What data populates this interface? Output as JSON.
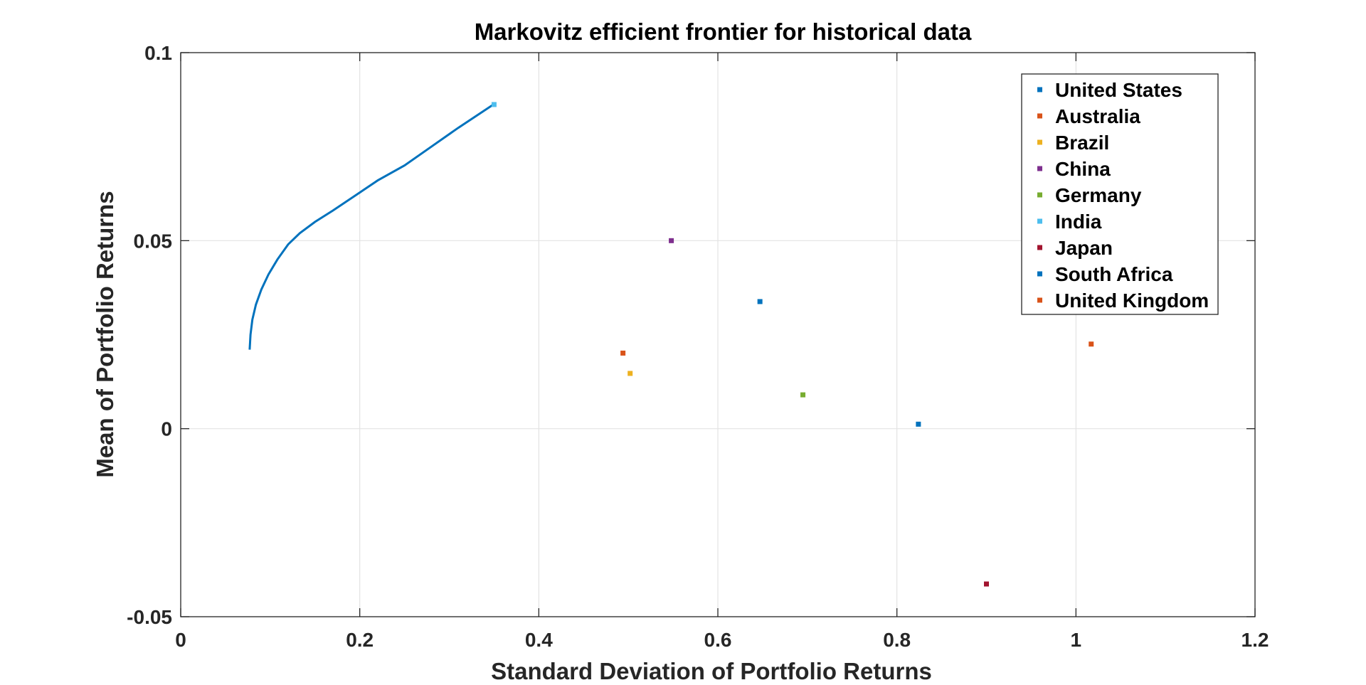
{
  "chart_data": {
    "type": "scatter",
    "title": "Markovitz efficient frontier for historical data",
    "xlabel": "Standard Deviation of Portfolio Returns",
    "ylabel": "Mean of Portfolio Returns",
    "xlim": [
      0,
      1.2
    ],
    "ylim": [
      -0.05,
      0.1
    ],
    "xticks": [
      0,
      0.2,
      0.4,
      0.6,
      0.8,
      1,
      1.2
    ],
    "xtick_labels": [
      "0",
      "0.2",
      "0.4",
      "0.6",
      "0.8",
      "1",
      "1.2"
    ],
    "yticks": [
      -0.05,
      0,
      0.05,
      0.1
    ],
    "ytick_labels": [
      "-0.05",
      "0",
      "0.05",
      "0.1"
    ],
    "grid": true,
    "legend_position": "top-right",
    "frontier": {
      "color": "#0072BD",
      "x": [
        0.077,
        0.078,
        0.08,
        0.084,
        0.09,
        0.098,
        0.108,
        0.12,
        0.133,
        0.15,
        0.17,
        0.195,
        0.22,
        0.25,
        0.28,
        0.31,
        0.348
      ],
      "y": [
        0.021,
        0.025,
        0.029,
        0.033,
        0.037,
        0.041,
        0.045,
        0.049,
        0.052,
        0.055,
        0.058,
        0.062,
        0.066,
        0.07,
        0.075,
        0.08,
        0.086
      ]
    },
    "series": [
      {
        "name": "United States",
        "color": "#0072BD",
        "x": 0.647,
        "y": 0.0338
      },
      {
        "name": "Australia",
        "color": "#D95319",
        "x": 0.494,
        "y": 0.0201
      },
      {
        "name": "Brazil",
        "color": "#EDB120",
        "x": 0.502,
        "y": 0.0147
      },
      {
        "name": "China",
        "color": "#7E2F8E",
        "x": 0.548,
        "y": 0.05
      },
      {
        "name": "Germany",
        "color": "#77AC30",
        "x": 0.695,
        "y": 0.009
      },
      {
        "name": "India",
        "color": "#4DBEEE",
        "x": 0.35,
        "y": 0.0862
      },
      {
        "name": "Japan",
        "color": "#A2142F",
        "x": 0.9,
        "y": -0.0413
      },
      {
        "name": "South Africa",
        "color": "#0072BD",
        "x": 0.824,
        "y": 0.0012
      },
      {
        "name": "United Kingdom",
        "color": "#D95319",
        "x": 1.017,
        "y": 0.0225
      }
    ]
  }
}
